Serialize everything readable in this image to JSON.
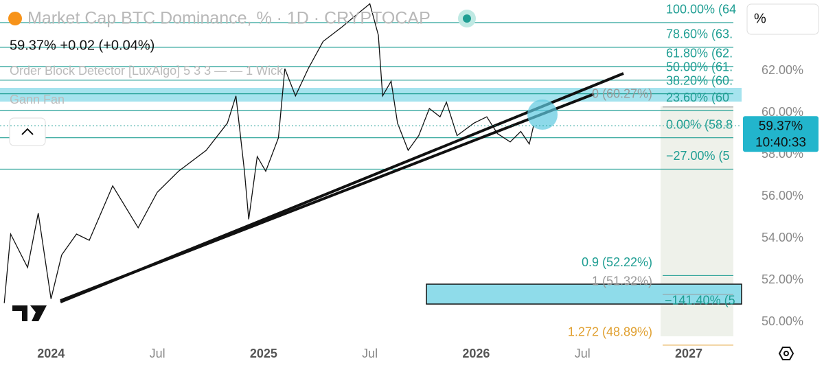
{
  "chart_data": {
    "type": "line",
    "title": "Market Cap BTC Dominance, % · 1D · CRYPTOCAP",
    "quote": "59.37% +0.02 (+0.04%)",
    "indicators": [
      "Order Block Detector [LuxAlgo] 5 3 3 — — 1 Wick",
      "Gann Fan"
    ],
    "unit_button": "%",
    "x": [
      2023.78,
      2023.81,
      2023.89,
      2023.94,
      2024.0,
      2024.05,
      2024.12,
      2024.18,
      2024.29,
      2024.41,
      2024.5,
      2024.6,
      2024.73,
      2024.83,
      2024.87,
      2024.91,
      2024.93,
      2024.97,
      2025.01,
      2025.07,
      2025.1,
      2025.15,
      2025.21,
      2025.28,
      2025.37,
      2025.44,
      2025.5,
      2025.54,
      2025.56,
      2025.6,
      2025.63,
      2025.68,
      2025.73,
      2025.78,
      2025.83,
      2025.86,
      2025.91,
      2025.99,
      2026.05,
      2026.1,
      2026.16,
      2026.21,
      2026.25,
      2026.27
    ],
    "series": [
      {
        "color": "#111111",
        "values": [
          50.9,
          54.2,
          52.6,
          55.2,
          51.1,
          53.2,
          54.2,
          53.9,
          56.5,
          54.5,
          56.2,
          57.2,
          58.2,
          59.5,
          60.8,
          57.2,
          54.9,
          57.9,
          57.2,
          58.8,
          62.1,
          60.8,
          62.1,
          63.4,
          64.1,
          64.7,
          65.2,
          63.7,
          60.8,
          61.5,
          59.5,
          58.2,
          58.9,
          60.2,
          59.8,
          60.5,
          58.9,
          59.5,
          59.8,
          59.0,
          58.6,
          59.1,
          58.5,
          59.37
        ]
      }
    ],
    "xlim": [
      2023.76,
      2027.21
    ],
    "xticks": [
      {
        "value": 2024,
        "label": "2024"
      },
      {
        "value": 2024.5,
        "label": "Jul"
      },
      {
        "value": 2025,
        "label": "2025"
      },
      {
        "value": 2025.5,
        "label": "Jul"
      },
      {
        "value": 2026,
        "label": "2026"
      },
      {
        "value": 2026.5,
        "label": "Jul"
      },
      {
        "value": 2027,
        "label": "2027"
      }
    ],
    "ylim": [
      49.15,
      65.38
    ],
    "yticks": [
      {
        "value": 50,
        "label": "50.00%"
      },
      {
        "value": 52,
        "label": "52.00%"
      },
      {
        "value": 54,
        "label": "54.00%"
      },
      {
        "value": 56,
        "label": "56.00%"
      },
      {
        "value": 58,
        "label": "58.00%"
      },
      {
        "value": 60,
        "label": "60.00%"
      },
      {
        "value": 62,
        "label": "62.00%"
      }
    ],
    "grid": false,
    "fib_levels": [
      {
        "value": 64.3,
        "label": "100.00% (64"
      },
      {
        "value": 63.12,
        "label": "78.60% (63."
      },
      {
        "value": 62.2,
        "label": "61.80% (62."
      },
      {
        "value": 61.55,
        "label": "50.00% (61."
      },
      {
        "value": 60.9,
        "label": "38.20% (60."
      },
      {
        "value": 60.1,
        "label": "23.60% (60"
      },
      {
        "value": 58.8,
        "label": "0.00% (58.8"
      },
      {
        "value": 57.3,
        "label": "−27.00% (5"
      }
    ],
    "gann_levels": [
      {
        "value": 60.27,
        "label": "0 (60.27%)",
        "color": "#999999"
      },
      {
        "value": 52.22,
        "label": "0.9 (52.22%)",
        "color": "#1f9e93"
      },
      {
        "value": 51.32,
        "label": "1 (51.32%)",
        "color": "#999999"
      },
      {
        "value": 48.89,
        "label": "1.272 (48.89%)",
        "color": "#e0a030"
      }
    ],
    "box_label": {
      "value": 51.0,
      "label": "−141.40% (5"
    },
    "price_tag": {
      "value": 59.37,
      "label": "59.37%",
      "time": "10:40:33"
    }
  }
}
